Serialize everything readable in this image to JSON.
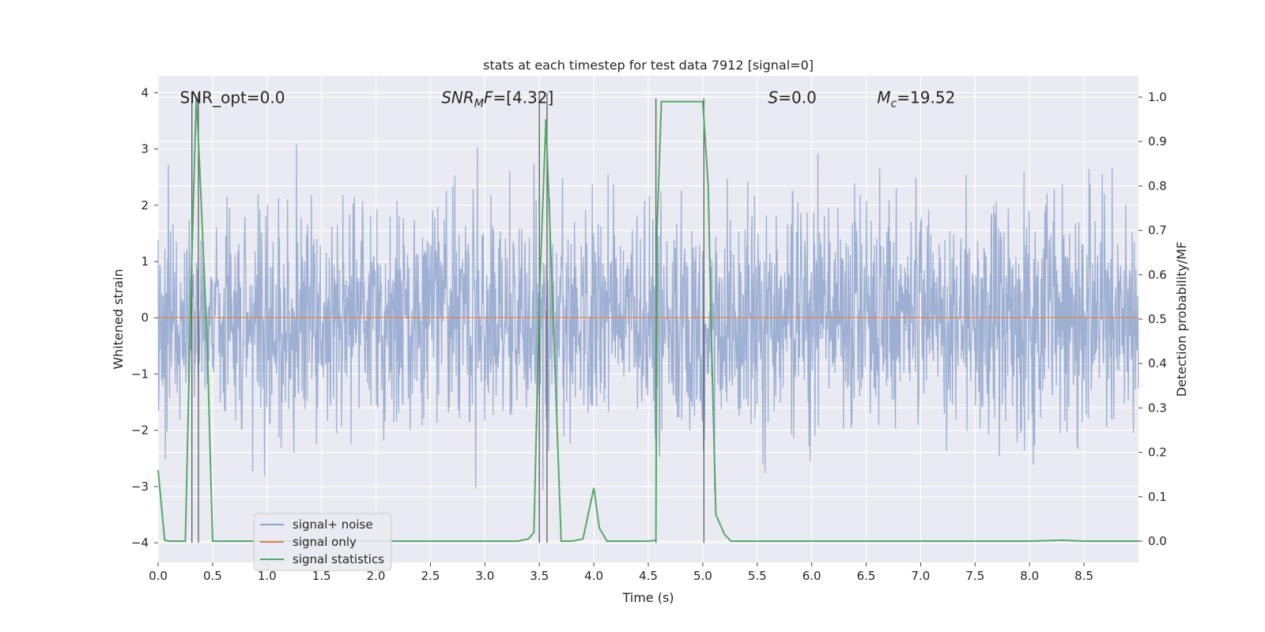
{
  "chart_data": {
    "type": "line",
    "title": "stats at each timestep for test data 7912 [signal=0]",
    "xlabel": "Time (s)",
    "ylabel": "Whitened strain",
    "ylabel_right": "Detection probability/MF",
    "xlim": [
      0.0,
      9.0
    ],
    "ylim": [
      -4.35,
      4.3
    ],
    "ylim_right": [
      -0.048,
      1.048
    ],
    "grid": true,
    "legend_position": "lower-left",
    "x_ticks": [
      "0.0",
      "0.5",
      "1.0",
      "1.5",
      "2.0",
      "2.5",
      "3.0",
      "3.5",
      "4.0",
      "4.5",
      "5.0",
      "5.5",
      "6.0",
      "6.5",
      "7.0",
      "7.5",
      "8.0",
      "8.5"
    ],
    "y_ticks": [
      "4",
      "3",
      "2",
      "1",
      "0",
      "−1",
      "−2",
      "−3",
      "−4"
    ],
    "y_ticks_right": [
      "1.0",
      "0.9",
      "0.8",
      "0.7",
      "0.6",
      "0.5",
      "0.4",
      "0.3",
      "0.2",
      "0.1",
      "0.0"
    ],
    "annotations": [
      {
        "parts": [
          {
            "t": "SNR_opt=0.0",
            "italic": false
          }
        ],
        "x": 0.2,
        "y": 3.9
      },
      {
        "parts": [
          {
            "t": "SNR",
            "italic": true
          },
          {
            "t": "M",
            "italic": true,
            "sub": true
          },
          {
            "t": "F",
            "italic": true
          },
          {
            "t": "=[4.32]",
            "italic": false
          }
        ],
        "x": 2.6,
        "y": 3.9
      },
      {
        "parts": [
          {
            "t": "S",
            "italic": true
          },
          {
            "t": "=0.0",
            "italic": false
          }
        ],
        "x": 5.6,
        "y": 3.9
      },
      {
        "parts": [
          {
            "t": "M",
            "italic": true
          },
          {
            "t": "c",
            "italic": true,
            "sub": true
          },
          {
            "t": "=19.52",
            "italic": false
          }
        ],
        "x": 6.6,
        "y": 3.9
      }
    ],
    "series": [
      {
        "name": "signal+ noise",
        "color": "#8fa4cc",
        "axis": "left",
        "kind": "noise",
        "samples": 2304,
        "sigma": 1.0,
        "envelope": [
          -4.0,
          3.9
        ]
      },
      {
        "name": "signal only",
        "color": "#dd8452",
        "axis": "left",
        "x": [
          0.0,
          9.0
        ],
        "y": [
          0.0,
          0.0
        ]
      },
      {
        "name": "signal statistics",
        "color": "#55a868",
        "axis": "right",
        "x": [
          0.0,
          0.06,
          0.1,
          0.15,
          0.2,
          0.25,
          0.3,
          0.35,
          0.38,
          0.45,
          0.5,
          0.6,
          1.0,
          1.5,
          2.0,
          2.5,
          3.0,
          3.3,
          3.4,
          3.45,
          3.5,
          3.56,
          3.62,
          3.7,
          3.8,
          3.9,
          4.0,
          4.05,
          4.12,
          4.2,
          4.4,
          4.5,
          4.57,
          4.58,
          4.62,
          4.7,
          4.8,
          4.9,
          5.0,
          5.05,
          5.08,
          5.12,
          5.2,
          5.26,
          5.5,
          6.0,
          7.0,
          8.0,
          8.3,
          8.5,
          9.0
        ],
        "y": [
          0.16,
          0.002,
          0.0,
          0.0,
          0.0,
          0.0,
          0.55,
          1.0,
          0.85,
          0.45,
          0.0,
          0.0,
          0.0,
          0.0,
          0.0,
          0.0,
          0.0,
          0.0,
          0.005,
          0.02,
          0.55,
          0.95,
          0.55,
          0.0,
          0.0,
          0.005,
          0.12,
          0.03,
          0.0,
          0.0,
          0.0,
          0.0,
          0.002,
          0.7,
          0.99,
          0.99,
          0.99,
          0.99,
          0.99,
          0.8,
          0.45,
          0.06,
          0.015,
          0.0,
          0.0,
          0.0,
          0.0,
          0.0,
          0.002,
          0.0,
          0.0
        ]
      }
    ],
    "vlines": [
      {
        "x": 0.31,
        "ymin": -4.0,
        "ymax": 4.0
      },
      {
        "x": 0.37,
        "ymin": -4.0,
        "ymax": 4.0
      },
      {
        "x": 3.5,
        "ymin": -4.0,
        "ymax": 4.0
      },
      {
        "x": 3.57,
        "ymin": -4.0,
        "ymax": 4.0
      },
      {
        "x": 4.57,
        "ymin": -4.0,
        "ymax": 3.9
      },
      {
        "x": 5.01,
        "ymin": -4.0,
        "ymax": 3.9
      }
    ],
    "colors": {
      "plot_background": "#eaeaf2",
      "grid": "#ffffff",
      "vline": "#555555",
      "legend_background": "#eaeaf2",
      "legend_border": "#cccccc"
    }
  }
}
